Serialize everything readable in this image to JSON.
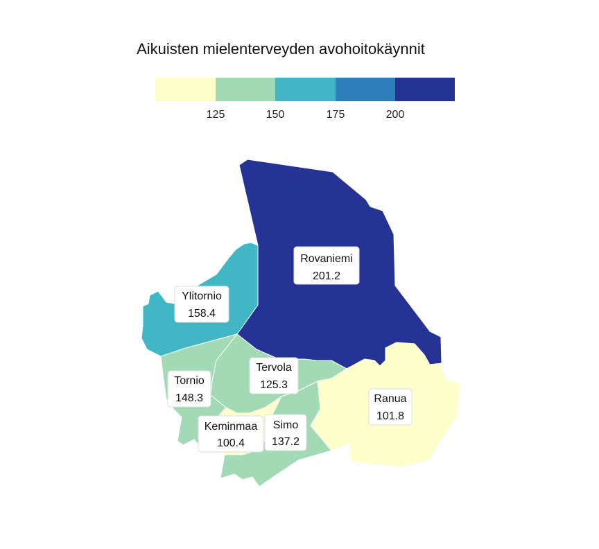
{
  "title": "Aikuisten mielenterveyden avohoitokäynnit",
  "legend": {
    "colors": [
      "#ffffcc",
      "#a1dab4",
      "#41b6c4",
      "#2c7fb8",
      "#253494"
    ],
    "ticks": [
      "125",
      "150",
      "175",
      "200"
    ]
  },
  "regions": [
    {
      "id": "rovaniemi",
      "name": "Rovaniemi",
      "value": "201.2",
      "color": "#253494"
    },
    {
      "id": "ylitornio",
      "name": "Ylitornio",
      "value": "158.4",
      "color": "#41b6c4"
    },
    {
      "id": "tornio",
      "name": "Tornio",
      "value": "148.3",
      "color": "#a1dab4"
    },
    {
      "id": "tervola",
      "name": "Tervola",
      "value": "125.3",
      "color": "#a1dab4"
    },
    {
      "id": "ranua",
      "name": "Ranua",
      "value": "101.8",
      "color": "#ffffcc"
    },
    {
      "id": "keminmaa",
      "name": "Keminmaa",
      "value": "100.4",
      "color": "#ffffcc"
    },
    {
      "id": "simo",
      "name": "Simo",
      "value": "137.2",
      "color": "#a1dab4"
    }
  ]
}
